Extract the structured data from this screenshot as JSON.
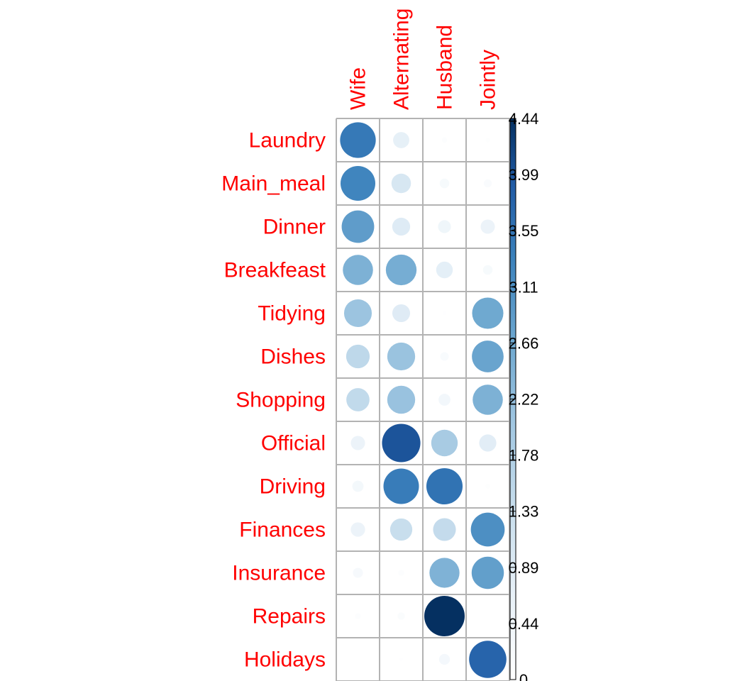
{
  "chart_data": {
    "type": "heatmap",
    "title": "",
    "columns": [
      "Wife",
      "Alternating",
      "Husband",
      "Jointly"
    ],
    "rows": [
      "Laundry",
      "Main_meal",
      "Dinner",
      "Breakfeast",
      "Tidying",
      "Dishes",
      "Shopping",
      "Official",
      "Driving",
      "Finances",
      "Insurance",
      "Repairs",
      "Holidays"
    ],
    "values": [
      [
        3.46,
        0.71,
        0.08,
        0.05
      ],
      [
        3.28,
        1.03,
        0.25,
        0.17
      ],
      [
        2.87,
        0.87,
        0.45,
        0.55
      ],
      [
        2.47,
        2.56,
        0.75,
        0.25
      ],
      [
        2.09,
        0.86,
        0.04,
        2.65
      ],
      [
        1.51,
        2.11,
        0.2,
        2.73
      ],
      [
        1.46,
        2.12,
        0.38,
        2.47
      ],
      [
        0.55,
        4.0,
        1.91,
        0.8
      ],
      [
        0.34,
        3.42,
        3.56,
        0.06
      ],
      [
        0.56,
        1.34,
        1.41,
        3.11
      ],
      [
        0.27,
        0.1,
        2.45,
        2.82
      ],
      [
        0.09,
        0.15,
        4.44,
        0.0
      ],
      [
        0.0,
        0.03,
        0.32,
        3.78
      ]
    ],
    "colorbar": {
      "ticks": [
        "4.44",
        "3.99",
        "3.55",
        "3.11",
        "2.66",
        "2.22",
        "1.78",
        "1.33",
        "0.89",
        "0.44",
        "0"
      ],
      "min": 0,
      "max": 4.44
    },
    "colors": {
      "label": "#ff0000",
      "grid": "#b3b3b3",
      "low": "#ffffff",
      "high": "#053061"
    }
  }
}
